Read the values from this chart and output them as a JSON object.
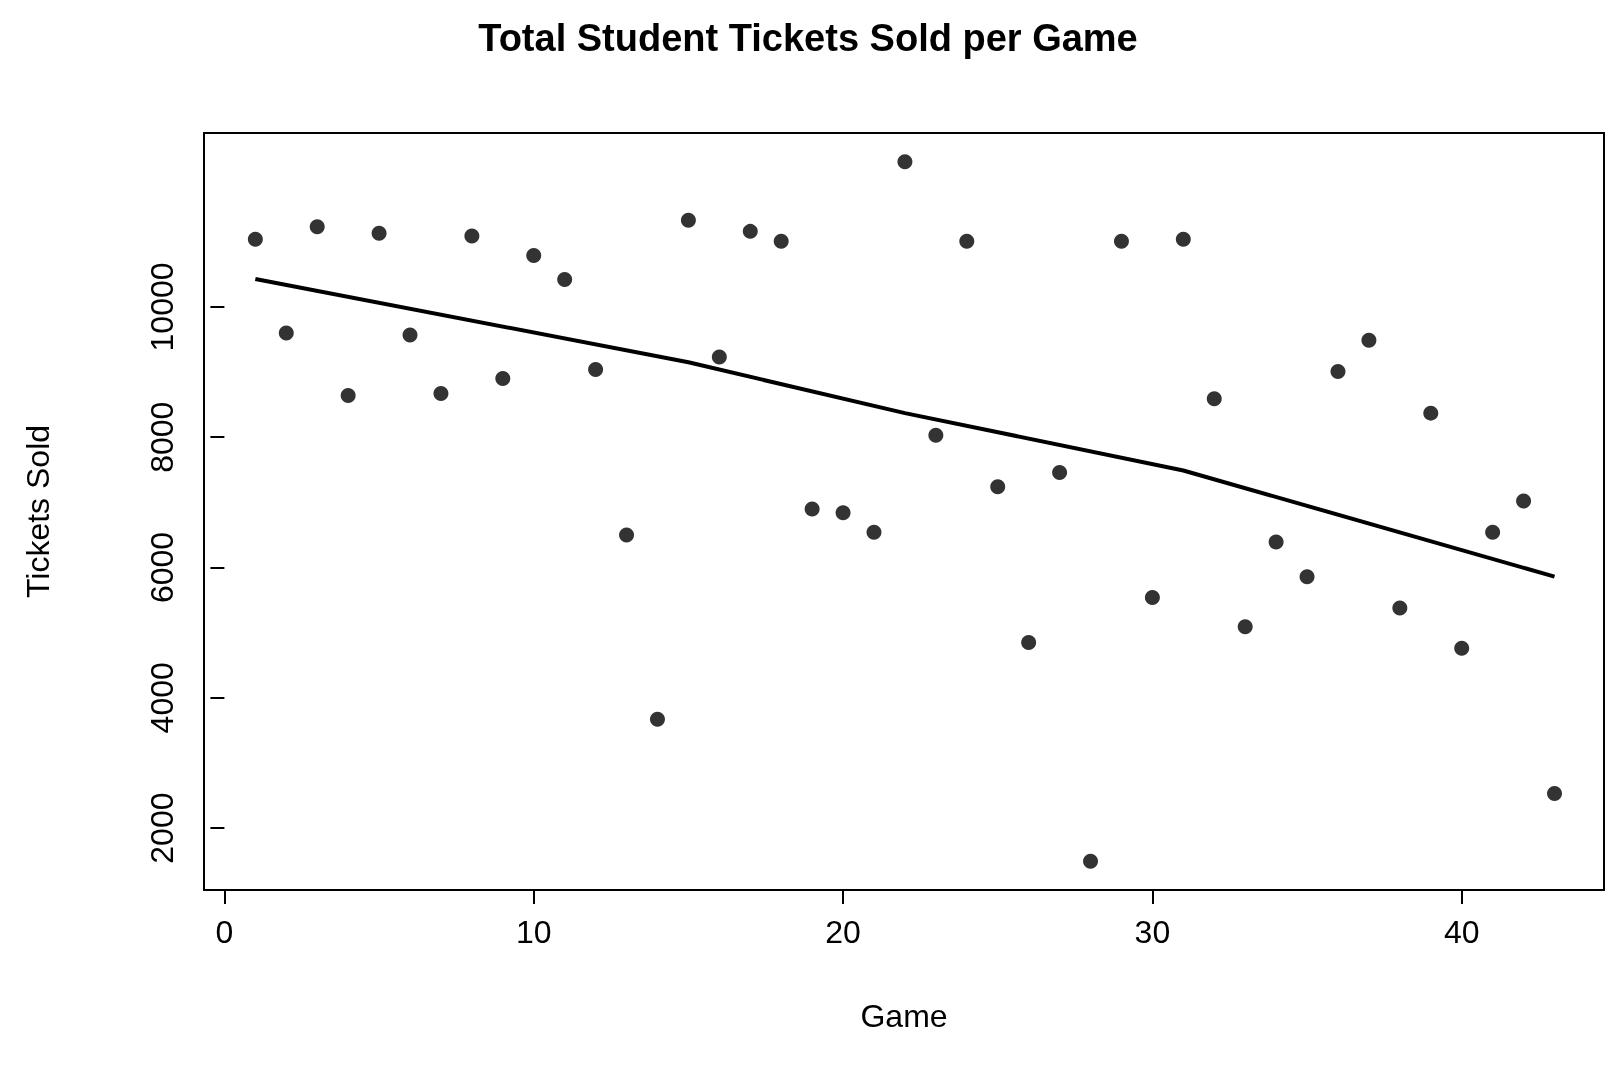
{
  "chart_data": {
    "type": "scatter",
    "title": "Total Student Tickets Sold per Game",
    "xlabel": "Game",
    "ylabel": "Tickets Sold",
    "xlim": [
      -0.66,
      44.6
    ],
    "ylim": [
      1050,
      12670
    ],
    "xticks": [
      0,
      10,
      20,
      30,
      40
    ],
    "yticks": [
      2000,
      4000,
      6000,
      8000,
      10000
    ],
    "grid": false,
    "marker": "circle",
    "series": [
      {
        "color": "#000000",
        "x": [
          1,
          2,
          3,
          4,
          5,
          6,
          7,
          8,
          9,
          10,
          11,
          12,
          13,
          14,
          15,
          16,
          17,
          18,
          19,
          20,
          21,
          22,
          23,
          24,
          25,
          26,
          27,
          28,
          29,
          30,
          31,
          32,
          33,
          34,
          35,
          36,
          37,
          38,
          39,
          40,
          41,
          42,
          43
        ],
        "values": [
          11040,
          9600,
          11230,
          8640,
          11130,
          9570,
          8670,
          11090,
          8900,
          10790,
          10420,
          9040,
          6500,
          3670,
          11330,
          9230,
          11160,
          11010,
          6900,
          6840,
          6540,
          12230,
          8030,
          11010,
          7240,
          4850,
          7460,
          1490,
          11010,
          5540,
          11040,
          8590,
          5090,
          6390,
          5860,
          9010,
          9490,
          5380,
          8370,
          4760,
          6540,
          7020,
          2530
        ]
      },
      {
        "type": "line",
        "color": "#000000",
        "marker": "none",
        "x": [
          1,
          15,
          22,
          31,
          43
        ],
        "values": [
          10430,
          9150,
          8370,
          7490,
          5860
        ]
      }
    ]
  }
}
